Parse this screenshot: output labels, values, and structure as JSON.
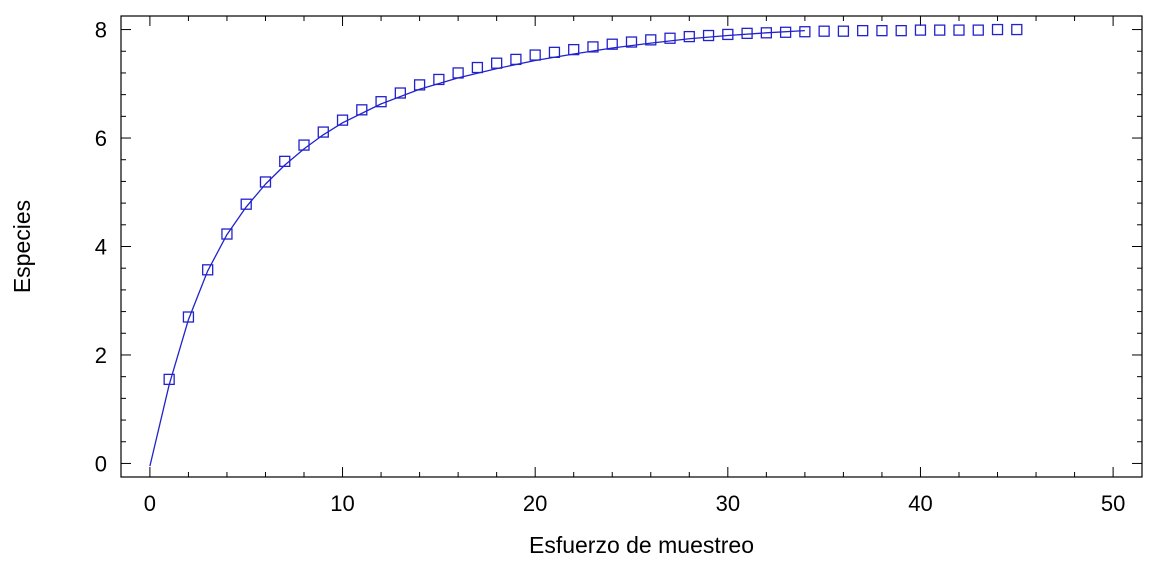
{
  "chart_data": {
    "type": "scatter",
    "title": "",
    "xlabel": "Esfuerzo de muestreo",
    "ylabel": "Especies",
    "xlim": [
      -1.5,
      51.5
    ],
    "ylim": [
      -0.25,
      8.25
    ],
    "x_ticks": [
      0,
      10,
      20,
      30,
      40,
      50
    ],
    "y_ticks": [
      0,
      2,
      4,
      6,
      8
    ],
    "x_minor_step": 2,
    "y_minor_step": 0.4,
    "grid": false,
    "legend": "none",
    "color": "#2222cc",
    "series": [
      {
        "kind": "markers",
        "marker": "open-square",
        "x": [
          1,
          2,
          3,
          4,
          5,
          6,
          7,
          8,
          9,
          10,
          11,
          12,
          13,
          14,
          15,
          16,
          17,
          18,
          19,
          20,
          21,
          22,
          23,
          24,
          25,
          26,
          27,
          28,
          29,
          30,
          31,
          32,
          33,
          34,
          35,
          36,
          37,
          38,
          39,
          40,
          41,
          42,
          43,
          44,
          45
        ],
        "y": [
          1.55,
          2.7,
          3.57,
          4.23,
          4.78,
          5.19,
          5.57,
          5.87,
          6.11,
          6.33,
          6.52,
          6.67,
          6.83,
          6.98,
          7.08,
          7.2,
          7.3,
          7.38,
          7.45,
          7.53,
          7.58,
          7.63,
          7.68,
          7.73,
          7.77,
          7.81,
          7.84,
          7.87,
          7.89,
          7.91,
          7.93,
          7.94,
          7.95,
          7.96,
          7.97,
          7.97,
          7.98,
          7.98,
          7.98,
          7.99,
          7.99,
          7.99,
          7.99,
          8.0,
          8.0
        ]
      },
      {
        "kind": "line",
        "x": [
          0,
          1,
          2,
          3,
          4,
          5,
          6,
          7,
          8,
          9,
          10,
          12,
          14,
          16,
          18,
          20,
          22,
          24,
          26,
          28,
          30,
          32,
          34
        ],
        "y": [
          -0.05,
          1.45,
          2.65,
          3.55,
          4.22,
          4.73,
          5.15,
          5.5,
          5.8,
          6.06,
          6.28,
          6.63,
          6.9,
          7.11,
          7.28,
          7.43,
          7.55,
          7.66,
          7.75,
          7.83,
          7.89,
          7.94,
          7.98
        ]
      }
    ]
  }
}
